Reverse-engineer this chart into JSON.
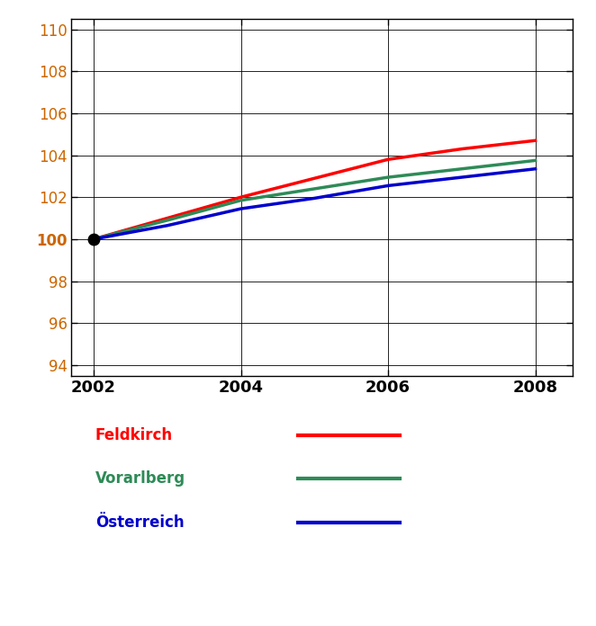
{
  "years": [
    2002,
    2003,
    2004,
    2005,
    2006,
    2007,
    2008
  ],
  "feldkirch": [
    100.0,
    101.0,
    102.0,
    102.9,
    103.8,
    104.3,
    104.7
  ],
  "vorarlberg": [
    100.0,
    100.9,
    101.85,
    102.4,
    102.95,
    103.35,
    103.75
  ],
  "oesterreich": [
    100.0,
    100.65,
    101.45,
    101.95,
    102.55,
    102.95,
    103.35
  ],
  "feldkirch_color": "#ff0000",
  "vorarlberg_color": "#2e8b57",
  "oesterreich_color": "#0000cc",
  "dot_color": "#000000",
  "line_width": 2.5,
  "ylim": [
    93.5,
    110.5
  ],
  "yticks": [
    94,
    96,
    98,
    100,
    102,
    104,
    106,
    108,
    110
  ],
  "xticks": [
    2002,
    2004,
    2006,
    2008
  ],
  "grid_color": "#000000",
  "legend_labels": [
    "Feldkirch",
    "Vorarlberg",
    "Österreich"
  ],
  "legend_colors": [
    "#ff0000",
    "#2e8b57",
    "#0000cc"
  ],
  "background_color": "#ffffff",
  "tick_label_color": "#cc6600",
  "tick_label_fontsize": 12,
  "legend_fontsize": 12,
  "xticklabel_color": "#000000",
  "xticklabel_fontsize": 13
}
